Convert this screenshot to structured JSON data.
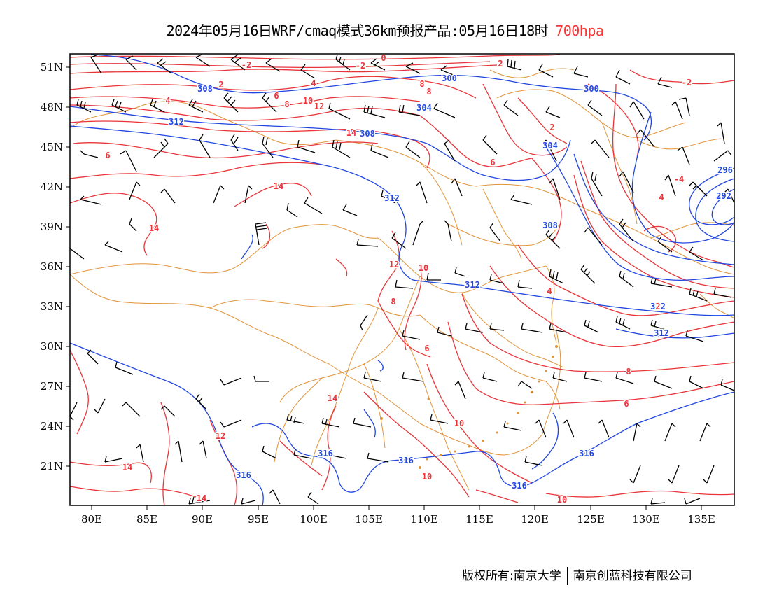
{
  "title": {
    "main": "2024年05月16日WRF/cmaq模式36km预报产品:05月16日18时",
    "level": "700hpa"
  },
  "map": {
    "lat_labels": [
      "51N",
      "48N",
      "45N",
      "42N",
      "39N",
      "36N",
      "33N",
      "30N",
      "27N",
      "24N",
      "21N"
    ],
    "lon_labels": [
      "80E",
      "85E",
      "90E",
      "95E",
      "100E",
      "105E",
      "110E",
      "115E",
      "120E",
      "125E",
      "130E",
      "135E"
    ],
    "colors": {
      "temperature": "#e8353a",
      "height": "#2146e0",
      "border": "#e0943a",
      "wind": "#000000"
    },
    "height_labels": [
      "312",
      "308",
      "308",
      "304",
      "300",
      "304",
      "300",
      "296",
      "292",
      "312",
      "308",
      "312",
      "312",
      "312",
      "316",
      "316",
      "316",
      "316",
      "316"
    ],
    "temperature_labels": [
      "0",
      "-2",
      "-2",
      "4",
      "2",
      "6",
      "8",
      "10",
      "12",
      "8",
      "8",
      "14",
      "2",
      "-2",
      "6",
      "6",
      "2",
      "4",
      "-4",
      "14",
      "14",
      "14",
      "12",
      "10",
      "8",
      "4",
      "2",
      "4",
      "6",
      "8",
      "6",
      "10",
      "14",
      "12",
      "14",
      "10",
      "10"
    ]
  },
  "footer": {
    "left": "版权所有:南京大学",
    "right": "南京创蓝科技有限公司"
  }
}
